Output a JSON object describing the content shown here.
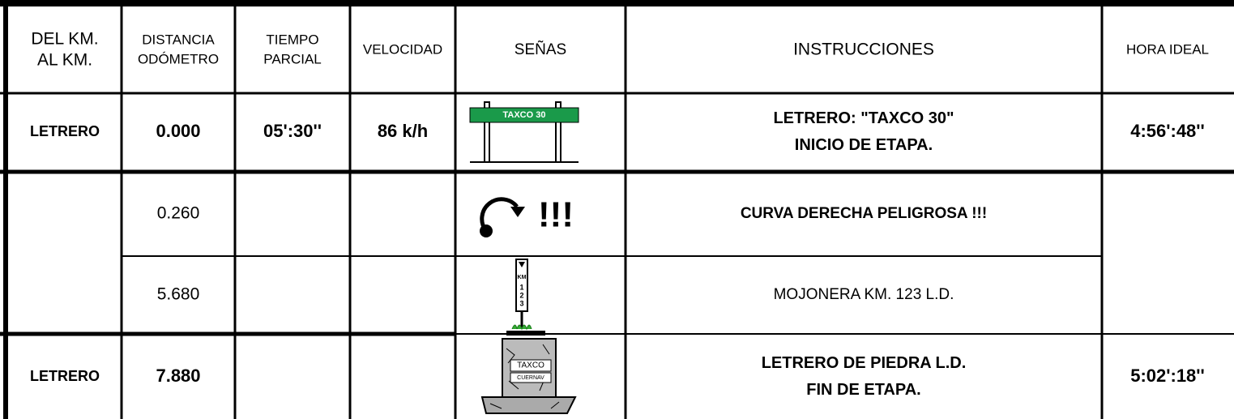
{
  "table": {
    "header": [
      [
        "DEL KM.",
        "AL KM."
      ],
      [
        "DISTANCIA",
        "ODÓMETRO"
      ],
      [
        "TIEMPO",
        "PARCIAL"
      ],
      [
        "VELOCIDAD"
      ],
      [
        "SEÑAS"
      ],
      [
        "INSTRUCCIONES"
      ],
      [
        "HORA IDEAL"
      ]
    ],
    "rows": [
      {
        "del_km": "LETRERO",
        "distancia": "0.000",
        "tiempo": "05':30''",
        "velocidad": "86 k/h",
        "instrucciones": [
          "LETRERO: \"TAXCO 30\"",
          "INICIO DE ETAPA."
        ],
        "hora": "4:56':48''"
      },
      {
        "distancia": "0.260",
        "instrucciones": [
          "CURVA DERECHA PELIGROSA !!!"
        ]
      },
      {
        "distancia": "5.680",
        "instrucciones": [
          "MOJONERA KM. 123 L.D."
        ]
      },
      {
        "del_km": "LETRERO",
        "distancia": "7.880",
        "instrucciones": [
          "LETRERO DE PIEDRA L.D.",
          "FIN DE ETAPA."
        ],
        "hora": "5:02':18''"
      }
    ],
    "signs": {
      "taxco_sign": "TAXCO 30",
      "exclaim": "!!!",
      "km_marker": [
        "KM",
        "1",
        "2",
        "3"
      ],
      "stone": [
        "TAXCO",
        "CUERNAV"
      ]
    }
  }
}
